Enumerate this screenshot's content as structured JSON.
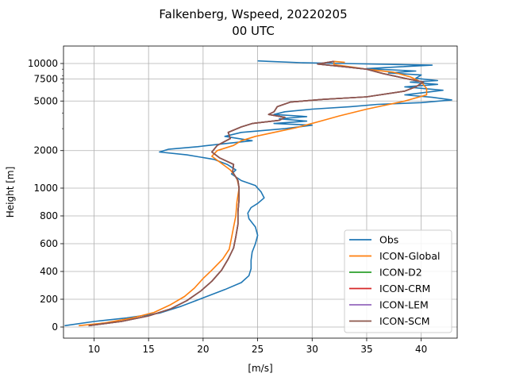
{
  "chart_data": {
    "type": "line",
    "title": "Falkenberg, Wspeed, 20220205",
    "subtitle": "00 UTC",
    "xlabel": "[m/s]",
    "ylabel": "Height [m]",
    "xlim": [
      7.2,
      43.3
    ],
    "x_ticks": [
      10,
      15,
      20,
      25,
      30,
      35,
      40
    ],
    "y_ticks": [
      {
        "label": "0",
        "value": 0
      },
      {
        "label": "200",
        "value": 200
      },
      {
        "label": "400",
        "value": 400
      },
      {
        "label": "600",
        "value": 600
      },
      {
        "label": "800",
        "value": 800
      },
      {
        "label": "1000",
        "value": 1000
      },
      {
        "label": "2000",
        "value": 2000
      },
      {
        "label": "5000",
        "value": 5000
      },
      {
        "label": "7500",
        "value": 7500
      },
      {
        "label": "10000",
        "value": 10000
      }
    ],
    "y_scale": "piecewise: linear 0-1000 m, logarithmic above 1000 m",
    "grid": true,
    "legend_position": "lower-right",
    "series": [
      {
        "name": "Obs",
        "color": "#1f77b4",
        "points": [
          [
            7.3,
            10
          ],
          [
            10,
            40
          ],
          [
            13,
            65
          ],
          [
            16,
            100
          ],
          [
            18,
            150
          ],
          [
            20,
            210
          ],
          [
            22,
            270
          ],
          [
            23.5,
            320
          ],
          [
            24.2,
            370
          ],
          [
            24.4,
            420
          ],
          [
            24.4,
            480
          ],
          [
            24.5,
            540
          ],
          [
            24.8,
            600
          ],
          [
            25,
            660
          ],
          [
            24.8,
            720
          ],
          [
            24.2,
            780
          ],
          [
            24.1,
            820
          ],
          [
            24.4,
            860
          ],
          [
            25,
            890
          ],
          [
            25.6,
            930
          ],
          [
            25.3,
            975
          ],
          [
            25,
            1000
          ],
          [
            24.8,
            1050
          ],
          [
            23.5,
            1150
          ],
          [
            22.6,
            1300
          ],
          [
            23,
            1400
          ],
          [
            22.2,
            1550
          ],
          [
            21,
            1700
          ],
          [
            18.5,
            1850
          ],
          [
            16,
            1950
          ],
          [
            16.8,
            2050
          ],
          [
            19.5,
            2150
          ],
          [
            21.5,
            2250
          ],
          [
            24.5,
            2400
          ],
          [
            22,
            2600
          ],
          [
            23.5,
            2800
          ],
          [
            27.5,
            3000
          ],
          [
            30,
            3200
          ],
          [
            26.5,
            3300
          ],
          [
            29.5,
            3450
          ],
          [
            27,
            3600
          ],
          [
            29.5,
            3750
          ],
          [
            26.5,
            3900
          ],
          [
            27.5,
            4100
          ],
          [
            30,
            4300
          ],
          [
            33.5,
            4500
          ],
          [
            36,
            4700
          ],
          [
            40,
            4850
          ],
          [
            42.8,
            5100
          ],
          [
            41,
            5350
          ],
          [
            38.5,
            5600
          ],
          [
            40,
            5800
          ],
          [
            42,
            6100
          ],
          [
            38.5,
            6500
          ],
          [
            41.5,
            6800
          ],
          [
            39,
            7100
          ],
          [
            41.5,
            7300
          ],
          [
            39.5,
            7600
          ],
          [
            40,
            8100
          ],
          [
            37,
            8400
          ],
          [
            39.5,
            8700
          ],
          [
            35,
            9100
          ],
          [
            38,
            9400
          ],
          [
            41,
            9700
          ],
          [
            33,
            10000
          ],
          [
            29,
            10150
          ],
          [
            26,
            10400
          ],
          [
            25,
            10500
          ]
        ]
      },
      {
        "name": "ICON-Global",
        "color": "#ff7f0e",
        "points": [
          [
            8.6,
            10
          ],
          [
            11,
            30
          ],
          [
            13.5,
            65
          ],
          [
            15.5,
            105
          ],
          [
            17,
            160
          ],
          [
            18.3,
            220
          ],
          [
            19.2,
            280
          ],
          [
            20,
            350
          ],
          [
            20.8,
            410
          ],
          [
            21.8,
            490
          ],
          [
            22.4,
            560
          ],
          [
            22.6,
            640
          ],
          [
            22.8,
            720
          ],
          [
            23,
            800
          ],
          [
            23.1,
            900
          ],
          [
            23.3,
            1000
          ],
          [
            23.1,
            1200
          ],
          [
            22.5,
            1400
          ],
          [
            21.6,
            1600
          ],
          [
            20.8,
            1800
          ],
          [
            21.3,
            2000
          ],
          [
            22.8,
            2200
          ],
          [
            23.5,
            2400
          ],
          [
            24.8,
            2600
          ],
          [
            26.5,
            2800
          ],
          [
            28.5,
            3050
          ],
          [
            30.5,
            3400
          ],
          [
            32.5,
            3800
          ],
          [
            35,
            4300
          ],
          [
            38.5,
            5000
          ],
          [
            40.5,
            5600
          ],
          [
            40.5,
            6300
          ],
          [
            40,
            7100
          ],
          [
            39,
            7800
          ],
          [
            37.5,
            8500
          ],
          [
            35,
            9000
          ],
          [
            33.5,
            9400
          ],
          [
            32,
            9800
          ],
          [
            32,
            10400
          ],
          [
            33,
            10200
          ]
        ]
      },
      {
        "name": "ICON-D2",
        "color": "#2ca02c",
        "points": [
          [
            9.5,
            10
          ],
          [
            12.5,
            40
          ],
          [
            15,
            80
          ],
          [
            17,
            130
          ],
          [
            18.5,
            190
          ],
          [
            19.8,
            260
          ],
          [
            20.8,
            330
          ],
          [
            21.7,
            410
          ],
          [
            22.3,
            490
          ],
          [
            22.8,
            570
          ],
          [
            23,
            650
          ],
          [
            23.2,
            740
          ],
          [
            23.2,
            830
          ],
          [
            23.3,
            920
          ],
          [
            23.3,
            1000
          ],
          [
            23.2,
            1150
          ],
          [
            22.7,
            1350
          ],
          [
            22.8,
            1550
          ],
          [
            21.5,
            1750
          ],
          [
            20.8,
            1950
          ],
          [
            21.3,
            2200
          ],
          [
            22.5,
            2500
          ],
          [
            22.3,
            2800
          ],
          [
            23.5,
            3100
          ],
          [
            24.5,
            3300
          ],
          [
            27,
            3500
          ],
          [
            27.5,
            3700
          ],
          [
            26,
            3900
          ],
          [
            26.5,
            4100
          ],
          [
            26.8,
            4500
          ],
          [
            28,
            4900
          ],
          [
            31,
            5150
          ],
          [
            35,
            5400
          ],
          [
            38.5,
            6000
          ],
          [
            39.5,
            6500
          ],
          [
            40.2,
            7100
          ],
          [
            38.5,
            7600
          ],
          [
            36.5,
            8300
          ],
          [
            35,
            9000
          ],
          [
            33,
            9400
          ],
          [
            30.5,
            9900
          ],
          [
            32,
            10400
          ]
        ]
      },
      {
        "name": "ICON-CRM",
        "color": "#d62728",
        "points": [
          [
            9.5,
            10
          ],
          [
            12.5,
            40
          ],
          [
            15,
            80
          ],
          [
            17,
            130
          ],
          [
            18.5,
            190
          ],
          [
            19.8,
            260
          ],
          [
            20.8,
            330
          ],
          [
            21.7,
            410
          ],
          [
            22.3,
            490
          ],
          [
            22.8,
            570
          ],
          [
            23,
            650
          ],
          [
            23.2,
            740
          ],
          [
            23.2,
            830
          ],
          [
            23.3,
            920
          ],
          [
            23.3,
            1000
          ],
          [
            23.2,
            1150
          ],
          [
            22.7,
            1350
          ],
          [
            22.8,
            1550
          ],
          [
            21.5,
            1750
          ],
          [
            20.8,
            1950
          ],
          [
            21.3,
            2200
          ],
          [
            22.5,
            2500
          ],
          [
            22.3,
            2800
          ],
          [
            23.5,
            3100
          ],
          [
            24.5,
            3300
          ],
          [
            27,
            3500
          ],
          [
            27.5,
            3700
          ],
          [
            26,
            3900
          ],
          [
            26.5,
            4100
          ],
          [
            26.8,
            4500
          ],
          [
            28,
            4900
          ],
          [
            31,
            5150
          ],
          [
            35,
            5400
          ],
          [
            38.5,
            6000
          ],
          [
            39.5,
            6500
          ],
          [
            40.2,
            7100
          ],
          [
            38.5,
            7600
          ],
          [
            36.5,
            8300
          ],
          [
            35,
            9000
          ],
          [
            33,
            9400
          ],
          [
            30.5,
            9900
          ],
          [
            32,
            10400
          ]
        ]
      },
      {
        "name": "ICON-LEM",
        "color": "#9467bd",
        "points": [
          [
            9.5,
            10
          ],
          [
            12.5,
            40
          ],
          [
            15,
            80
          ],
          [
            17,
            130
          ],
          [
            18.5,
            190
          ],
          [
            19.8,
            260
          ],
          [
            20.8,
            330
          ],
          [
            21.7,
            410
          ],
          [
            22.3,
            490
          ],
          [
            22.8,
            570
          ],
          [
            23,
            650
          ],
          [
            23.2,
            740
          ],
          [
            23.2,
            830
          ],
          [
            23.3,
            920
          ],
          [
            23.3,
            1000
          ],
          [
            23.2,
            1150
          ],
          [
            22.7,
            1350
          ],
          [
            22.8,
            1550
          ],
          [
            21.5,
            1750
          ],
          [
            20.8,
            1950
          ],
          [
            21.3,
            2200
          ],
          [
            22.5,
            2500
          ],
          [
            22.3,
            2800
          ],
          [
            23.5,
            3100
          ],
          [
            24.5,
            3300
          ],
          [
            27,
            3500
          ],
          [
            27.5,
            3700
          ],
          [
            26,
            3900
          ],
          [
            26.5,
            4100
          ],
          [
            26.8,
            4500
          ],
          [
            28,
            4900
          ],
          [
            31,
            5150
          ],
          [
            35,
            5400
          ],
          [
            38.5,
            6000
          ],
          [
            39.5,
            6500
          ],
          [
            40.2,
            7100
          ],
          [
            38.5,
            7600
          ],
          [
            36.5,
            8300
          ],
          [
            35,
            9000
          ],
          [
            33,
            9400
          ],
          [
            30.5,
            9900
          ],
          [
            32,
            10400
          ]
        ]
      },
      {
        "name": "ICON-SCM",
        "color": "#8c564b",
        "points": [
          [
            9.5,
            10
          ],
          [
            12.5,
            40
          ],
          [
            15,
            80
          ],
          [
            17,
            130
          ],
          [
            18.5,
            190
          ],
          [
            19.8,
            260
          ],
          [
            20.8,
            330
          ],
          [
            21.7,
            410
          ],
          [
            22.3,
            490
          ],
          [
            22.8,
            570
          ],
          [
            23,
            650
          ],
          [
            23.2,
            740
          ],
          [
            23.2,
            830
          ],
          [
            23.3,
            920
          ],
          [
            23.3,
            1000
          ],
          [
            23.2,
            1150
          ],
          [
            22.7,
            1350
          ],
          [
            22.8,
            1550
          ],
          [
            21.5,
            1750
          ],
          [
            20.8,
            1950
          ],
          [
            21.3,
            2200
          ],
          [
            22.5,
            2500
          ],
          [
            22.3,
            2800
          ],
          [
            23.5,
            3100
          ],
          [
            24.5,
            3300
          ],
          [
            27,
            3500
          ],
          [
            27.5,
            3700
          ],
          [
            26,
            3900
          ],
          [
            26.5,
            4100
          ],
          [
            26.8,
            4500
          ],
          [
            28,
            4900
          ],
          [
            31,
            5150
          ],
          [
            35,
            5400
          ],
          [
            38.5,
            6000
          ],
          [
            39.5,
            6500
          ],
          [
            40.2,
            7100
          ],
          [
            38.5,
            7600
          ],
          [
            36.5,
            8300
          ],
          [
            35,
            9000
          ],
          [
            33,
            9400
          ],
          [
            30.5,
            9900
          ],
          [
            32,
            10400
          ]
        ]
      }
    ]
  }
}
